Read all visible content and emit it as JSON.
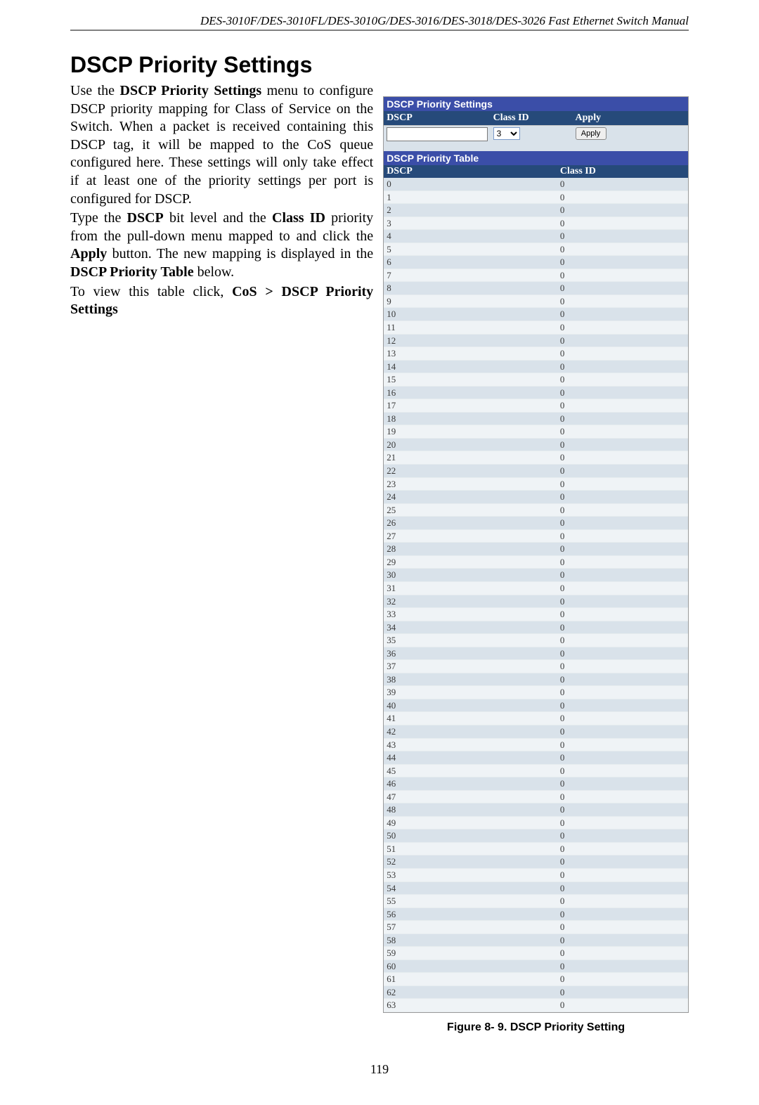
{
  "header": "DES-3010F/DES-3010FL/DES-3010G/DES-3016/DES-3018/DES-3026 Fast Ethernet Switch Manual",
  "page_title": "DSCP Priority Settings",
  "body": {
    "p1a": "Use the ",
    "p1b": "DSCP Priority Settings",
    "p1c": " menu to configure DSCP priority mapping for Class of Service on the Switch. When a packet is received containing this DSCP tag, it will be mapped to the CoS queue configured here. These settings will only take effect if at least one of the priority settings per port is configured for DSCP.",
    "p2a": "Type the ",
    "p2b": "DSCP",
    "p2c": " bit level and the ",
    "p2d": "Class ID",
    "p2e": " priority from the pull-down menu mapped to and click the ",
    "p2f": "Apply",
    "p2g": " button. The new mapping is displayed in the ",
    "p2h": "DSCP Priority Table",
    "p2i": " below.",
    "p3a": "To view this table click, ",
    "p3b": "CoS > DSCP Priority Settings"
  },
  "panel": {
    "settings_title": "DSCP Priority Settings",
    "table_title": "DSCP Priority Table",
    "col_dscp": "DSCP",
    "col_class": "Class ID",
    "col_apply": "Apply",
    "dscp_value": "",
    "class_selected": "3",
    "apply_label": "Apply",
    "rows": [
      {
        "dscp": "0",
        "cls": "0"
      },
      {
        "dscp": "1",
        "cls": "0"
      },
      {
        "dscp": "2",
        "cls": "0"
      },
      {
        "dscp": "3",
        "cls": "0"
      },
      {
        "dscp": "4",
        "cls": "0"
      },
      {
        "dscp": "5",
        "cls": "0"
      },
      {
        "dscp": "6",
        "cls": "0"
      },
      {
        "dscp": "7",
        "cls": "0"
      },
      {
        "dscp": "8",
        "cls": "0"
      },
      {
        "dscp": "9",
        "cls": "0"
      },
      {
        "dscp": "10",
        "cls": "0"
      },
      {
        "dscp": "11",
        "cls": "0"
      },
      {
        "dscp": "12",
        "cls": "0"
      },
      {
        "dscp": "13",
        "cls": "0"
      },
      {
        "dscp": "14",
        "cls": "0"
      },
      {
        "dscp": "15",
        "cls": "0"
      },
      {
        "dscp": "16",
        "cls": "0"
      },
      {
        "dscp": "17",
        "cls": "0"
      },
      {
        "dscp": "18",
        "cls": "0"
      },
      {
        "dscp": "19",
        "cls": "0"
      },
      {
        "dscp": "20",
        "cls": "0"
      },
      {
        "dscp": "21",
        "cls": "0"
      },
      {
        "dscp": "22",
        "cls": "0"
      },
      {
        "dscp": "23",
        "cls": "0"
      },
      {
        "dscp": "24",
        "cls": "0"
      },
      {
        "dscp": "25",
        "cls": "0"
      },
      {
        "dscp": "26",
        "cls": "0"
      },
      {
        "dscp": "27",
        "cls": "0"
      },
      {
        "dscp": "28",
        "cls": "0"
      },
      {
        "dscp": "29",
        "cls": "0"
      },
      {
        "dscp": "30",
        "cls": "0"
      },
      {
        "dscp": "31",
        "cls": "0"
      },
      {
        "dscp": "32",
        "cls": "0"
      },
      {
        "dscp": "33",
        "cls": "0"
      },
      {
        "dscp": "34",
        "cls": "0"
      },
      {
        "dscp": "35",
        "cls": "0"
      },
      {
        "dscp": "36",
        "cls": "0"
      },
      {
        "dscp": "37",
        "cls": "0"
      },
      {
        "dscp": "38",
        "cls": "0"
      },
      {
        "dscp": "39",
        "cls": "0"
      },
      {
        "dscp": "40",
        "cls": "0"
      },
      {
        "dscp": "41",
        "cls": "0"
      },
      {
        "dscp": "42",
        "cls": "0"
      },
      {
        "dscp": "43",
        "cls": "0"
      },
      {
        "dscp": "44",
        "cls": "0"
      },
      {
        "dscp": "45",
        "cls": "0"
      },
      {
        "dscp": "46",
        "cls": "0"
      },
      {
        "dscp": "47",
        "cls": "0"
      },
      {
        "dscp": "48",
        "cls": "0"
      },
      {
        "dscp": "49",
        "cls": "0"
      },
      {
        "dscp": "50",
        "cls": "0"
      },
      {
        "dscp": "51",
        "cls": "0"
      },
      {
        "dscp": "52",
        "cls": "0"
      },
      {
        "dscp": "53",
        "cls": "0"
      },
      {
        "dscp": "54",
        "cls": "0"
      },
      {
        "dscp": "55",
        "cls": "0"
      },
      {
        "dscp": "56",
        "cls": "0"
      },
      {
        "dscp": "57",
        "cls": "0"
      },
      {
        "dscp": "58",
        "cls": "0"
      },
      {
        "dscp": "59",
        "cls": "0"
      },
      {
        "dscp": "60",
        "cls": "0"
      },
      {
        "dscp": "61",
        "cls": "0"
      },
      {
        "dscp": "62",
        "cls": "0"
      },
      {
        "dscp": "63",
        "cls": "0"
      }
    ]
  },
  "figure_caption": "Figure 8- 9. DSCP Priority Setting",
  "page_number": "119"
}
